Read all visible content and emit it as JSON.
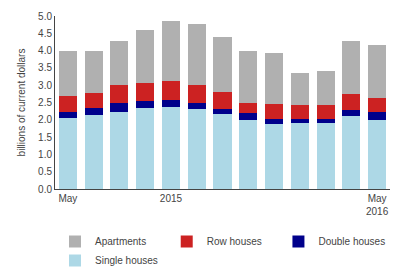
{
  "chart_data": {
    "type": "bar",
    "stacked": true,
    "categories": [
      "May",
      null,
      null,
      null,
      "2015",
      null,
      null,
      null,
      null,
      null,
      null,
      null,
      "May\n2016"
    ],
    "series": [
      {
        "name": "Single houses",
        "color": "#add8e6",
        "values": [
          2.05,
          2.15,
          2.22,
          2.35,
          2.38,
          2.32,
          2.18,
          2.0,
          1.88,
          1.9,
          1.92,
          2.1,
          2.0
        ]
      },
      {
        "name": "Double houses",
        "color": "#00008b",
        "values": [
          0.18,
          0.18,
          0.28,
          0.2,
          0.18,
          0.18,
          0.12,
          0.2,
          0.15,
          0.12,
          0.1,
          0.18,
          0.22
        ]
      },
      {
        "name": "Row houses",
        "color": "#cc2222",
        "values": [
          0.47,
          0.45,
          0.5,
          0.5,
          0.55,
          0.52,
          0.5,
          0.3,
          0.42,
          0.4,
          0.4,
          0.48,
          0.42
        ]
      },
      {
        "name": "Apartments",
        "color": "#b0b0b0",
        "values": [
          1.3,
          1.22,
          1.28,
          1.55,
          1.74,
          1.76,
          1.58,
          1.48,
          1.48,
          0.92,
          0.98,
          1.52,
          1.52
        ]
      }
    ],
    "ylabel": "billions of current dollars",
    "ylim": [
      0.0,
      5.0
    ],
    "yticks": [
      {
        "value": 0,
        "label": "0.0"
      },
      0.5,
      {
        "value": 1,
        "label": "1.0"
      },
      1.5,
      {
        "value": 2,
        "label": "2.0"
      },
      2.5,
      {
        "value": 3,
        "label": "3.0"
      },
      3.5,
      {
        "value": 4,
        "label": "4.0"
      },
      4.5,
      {
        "value": 5,
        "label": "5.0"
      }
    ],
    "grid": false,
    "legend": "bottom"
  }
}
